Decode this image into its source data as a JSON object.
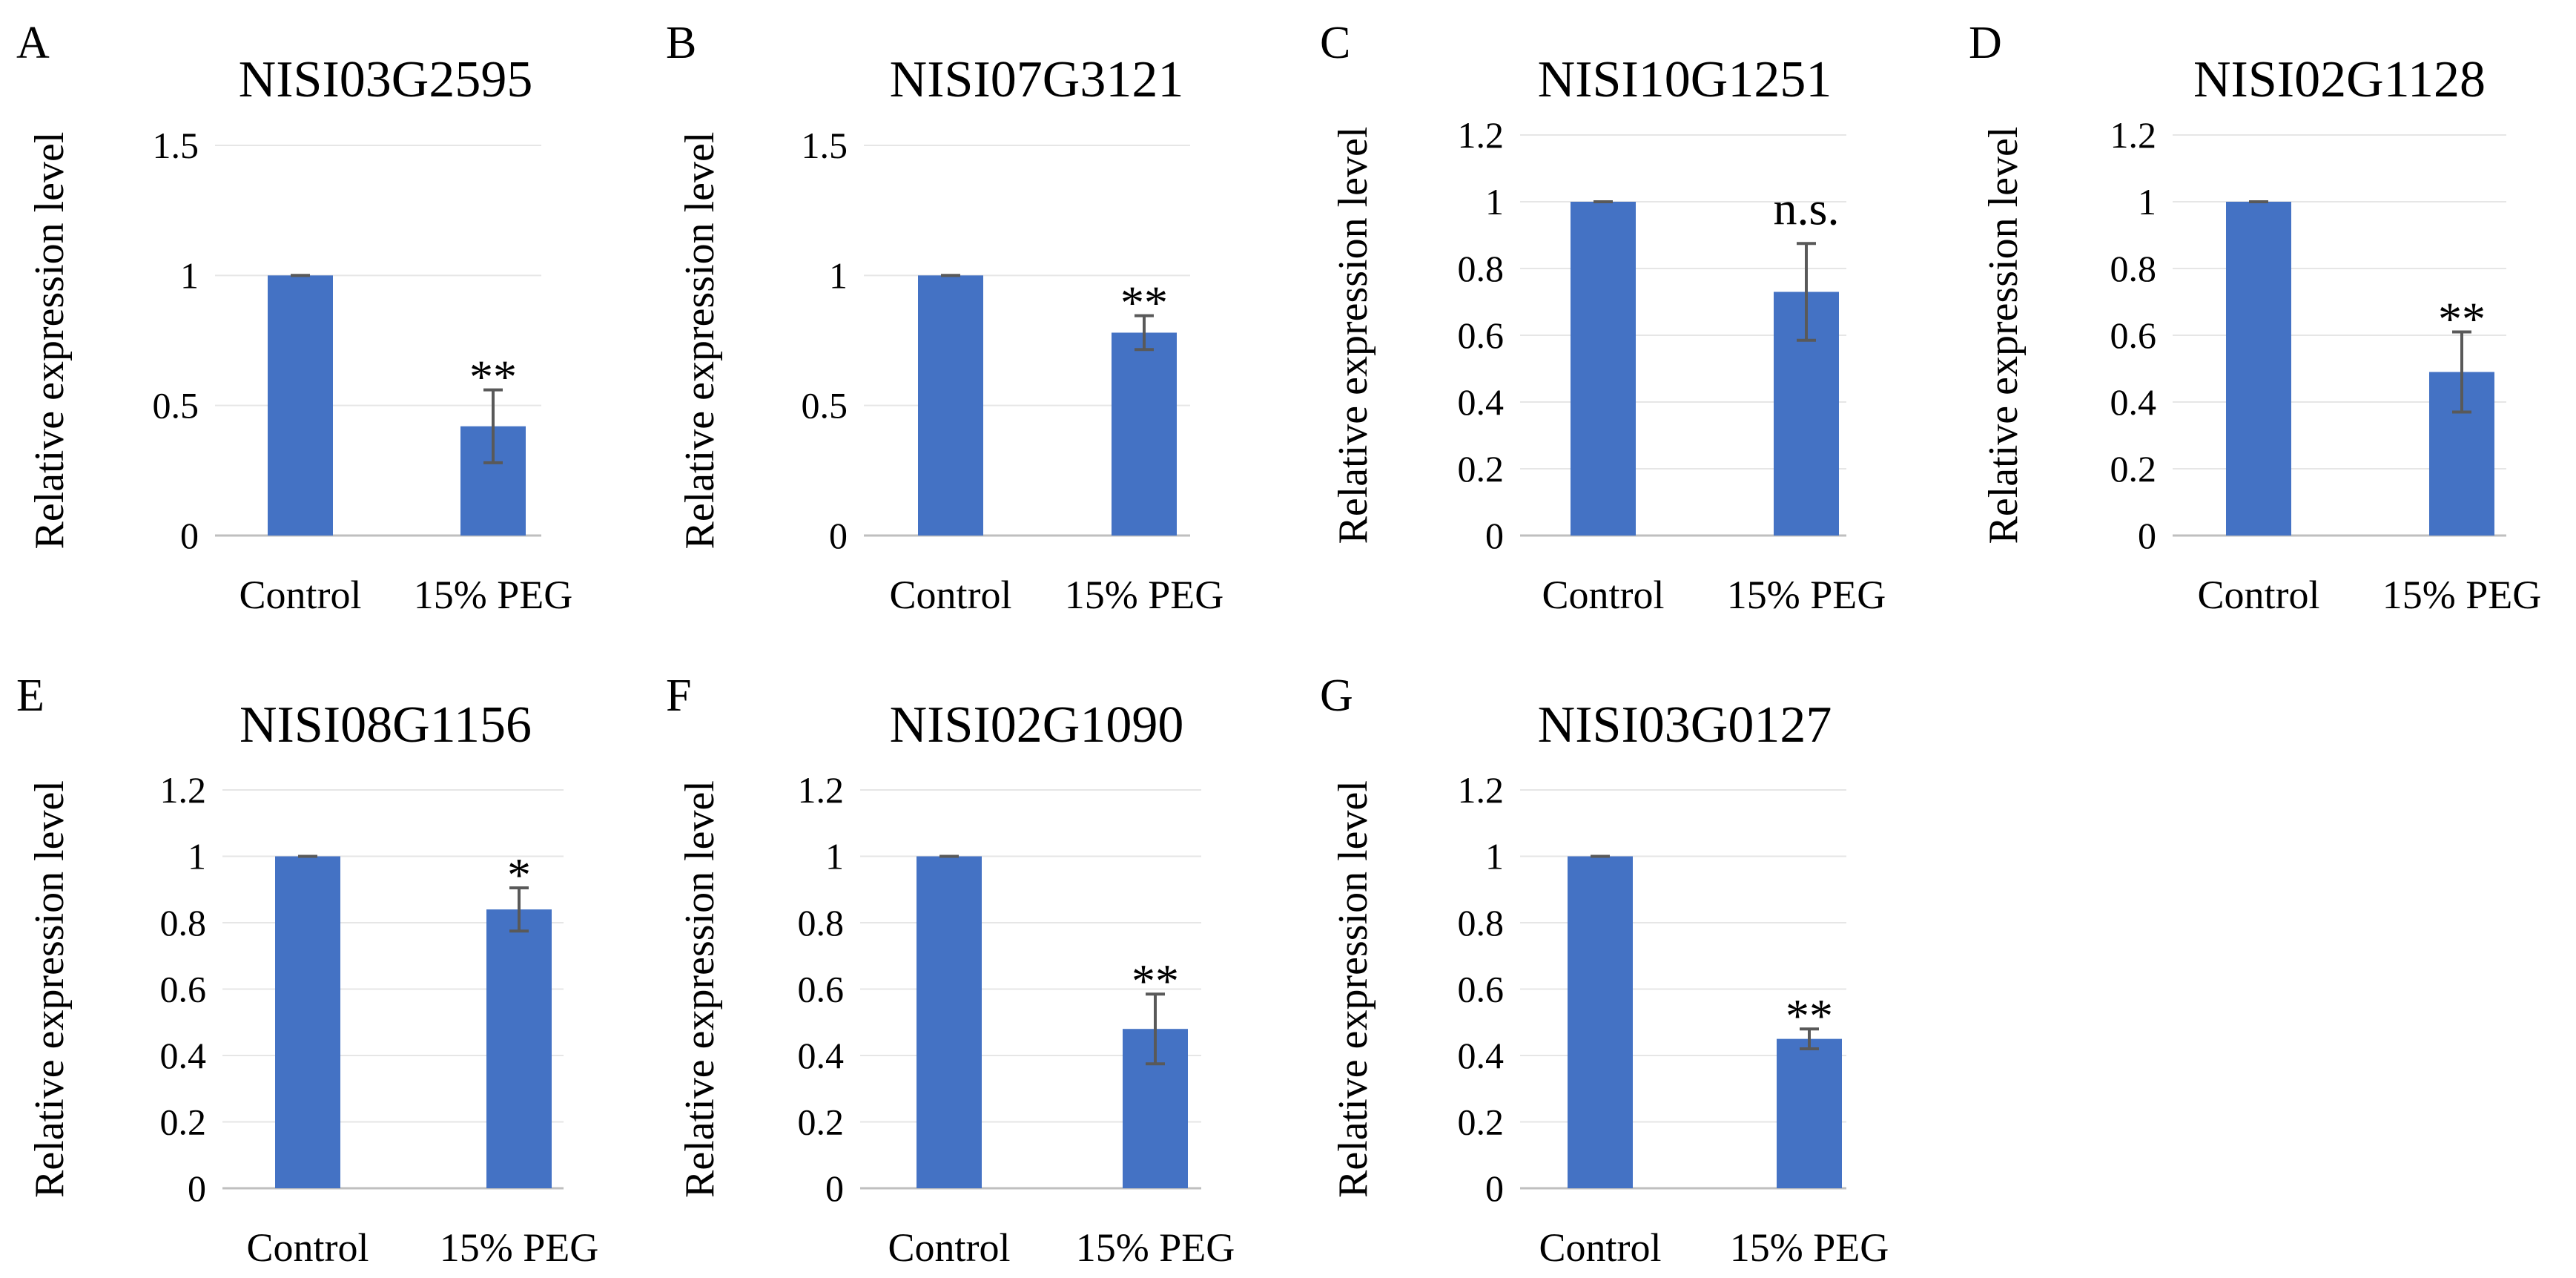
{
  "chart_data": [
    {
      "panel": "A",
      "type": "bar",
      "title": "NISI03G2595",
      "ylabel": "Relative expression level",
      "xlabel": "",
      "categories": [
        "Control",
        "15% PEG"
      ],
      "values": [
        1.0,
        0.42
      ],
      "errors": [
        0.0,
        0.14
      ],
      "significance": [
        "",
        "**"
      ],
      "ylim": [
        0,
        1.5
      ],
      "yticks": [
        0,
        0.5,
        1,
        1.5
      ],
      "ytick_labels": [
        "0",
        "0.5",
        "1",
        "1.5"
      ],
      "color": "#4472C4",
      "grid": true
    },
    {
      "panel": "B",
      "type": "bar",
      "title": "NISI07G3121",
      "ylabel": "Relative expression level",
      "xlabel": "",
      "categories": [
        "Control",
        "15% PEG"
      ],
      "values": [
        1.0,
        0.78
      ],
      "errors": [
        0.0,
        0.065
      ],
      "significance": [
        "",
        "**"
      ],
      "ylim": [
        0,
        1.5
      ],
      "yticks": [
        0,
        0.5,
        1,
        1.5
      ],
      "ytick_labels": [
        "0",
        "0.5",
        "1",
        "1.5"
      ],
      "color": "#4472C4",
      "grid": true
    },
    {
      "panel": "C",
      "type": "bar",
      "title": "NISI10G1251",
      "ylabel": "Relative expression level",
      "xlabel": "",
      "categories": [
        "Control",
        "15% PEG"
      ],
      "values": [
        1.0,
        0.73
      ],
      "errors": [
        0.0,
        0.145
      ],
      "significance": [
        "",
        "n.s."
      ],
      "ylim": [
        0,
        1.2
      ],
      "yticks": [
        0,
        0.2,
        0.4,
        0.6,
        0.8,
        1,
        1.2
      ],
      "ytick_labels": [
        "0",
        "0.2",
        "0.4",
        "0.6",
        "0.8",
        "1",
        "1.2"
      ],
      "color": "#4472C4",
      "grid": true
    },
    {
      "panel": "D",
      "type": "bar",
      "title": "NISI02G1128",
      "ylabel": "Relative expression level",
      "xlabel": "",
      "categories": [
        "Control",
        "15% PEG"
      ],
      "values": [
        1.0,
        0.49
      ],
      "errors": [
        0.0,
        0.12
      ],
      "significance": [
        "",
        "**"
      ],
      "ylim": [
        0,
        1.2
      ],
      "yticks": [
        0,
        0.2,
        0.4,
        0.6,
        0.8,
        1,
        1.2
      ],
      "ytick_labels": [
        "0",
        "0.2",
        "0.4",
        "0.6",
        "0.8",
        "1",
        "1.2"
      ],
      "color": "#4472C4",
      "grid": true
    },
    {
      "panel": "E",
      "type": "bar",
      "title": "NISI08G1156",
      "ylabel": "Relative expression level",
      "xlabel": "",
      "categories": [
        "Control",
        "15% PEG"
      ],
      "values": [
        1.0,
        0.84
      ],
      "errors": [
        0.0,
        0.065
      ],
      "significance": [
        "",
        "*"
      ],
      "ylim": [
        0,
        1.2
      ],
      "yticks": [
        0,
        0.2,
        0.4,
        0.6,
        0.8,
        1,
        1.2
      ],
      "ytick_labels": [
        "0",
        "0.2",
        "0.4",
        "0.6",
        "0.8",
        "1",
        "1.2"
      ],
      "color": "#4472C4",
      "grid": true
    },
    {
      "panel": "F",
      "type": "bar",
      "title": "NISI02G1090",
      "ylabel": "Relative expression level",
      "xlabel": "",
      "categories": [
        "Control",
        "15% PEG"
      ],
      "values": [
        1.0,
        0.48
      ],
      "errors": [
        0.0,
        0.105
      ],
      "significance": [
        "",
        "**"
      ],
      "ylim": [
        0,
        1.2
      ],
      "yticks": [
        0,
        0.2,
        0.4,
        0.6,
        0.8,
        1,
        1.2
      ],
      "ytick_labels": [
        "0",
        "0.2",
        "0.4",
        "0.6",
        "0.8",
        "1",
        "1.2"
      ],
      "color": "#4472C4",
      "grid": true
    },
    {
      "panel": "G",
      "type": "bar",
      "title": "NISI03G0127",
      "ylabel": "Relative expression level",
      "xlabel": "",
      "categories": [
        "Control",
        "15% PEG"
      ],
      "values": [
        1.0,
        0.45
      ],
      "errors": [
        0.0,
        0.03
      ],
      "significance": [
        "",
        "**"
      ],
      "ylim": [
        0,
        1.2
      ],
      "yticks": [
        0,
        0.2,
        0.4,
        0.6,
        0.8,
        1,
        1.2
      ],
      "ytick_labels": [
        "0",
        "0.2",
        "0.4",
        "0.6",
        "0.8",
        "1",
        "1.2"
      ],
      "color": "#4472C4",
      "grid": true
    }
  ]
}
